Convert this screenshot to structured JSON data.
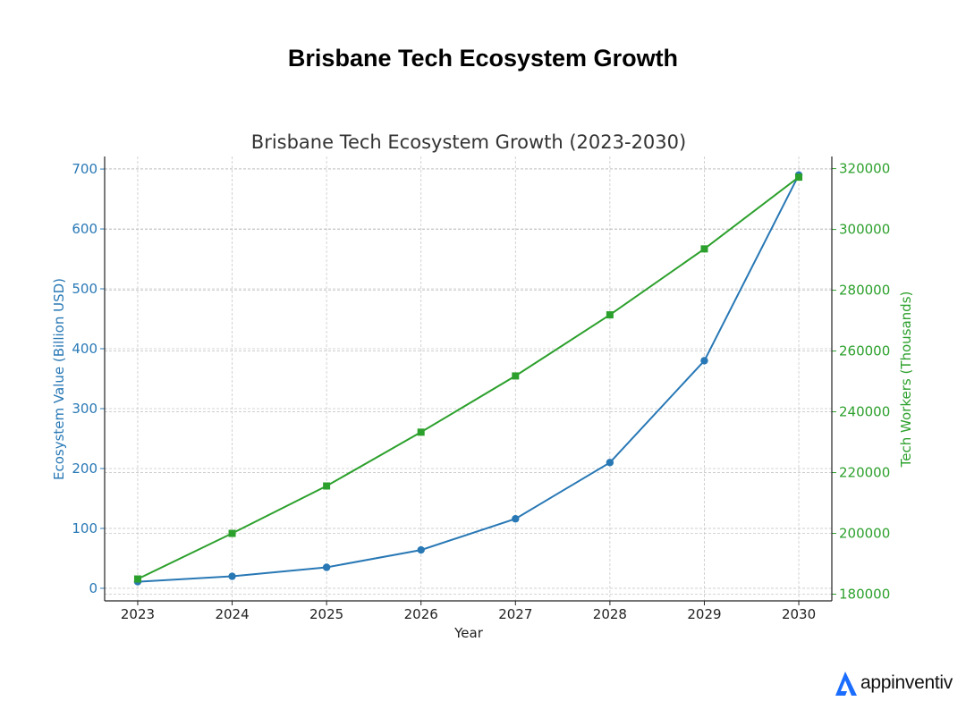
{
  "page": {
    "title": "Brisbane Tech Ecosystem Growth"
  },
  "brand": {
    "logo_text": "appinventiv",
    "logo_color": "#1a6dff"
  },
  "chart_data": {
    "type": "line",
    "title": "Brisbane Tech Ecosystem Growth (2023-2030)",
    "xlabel": "Year",
    "ylabel_left": "Ecosystem Value (Billion USD)",
    "ylabel_right": "Tech Workers (Thousands)",
    "x": [
      2023,
      2024,
      2025,
      2026,
      2027,
      2028,
      2029,
      2030
    ],
    "ylim_left": [
      -21,
      721
    ],
    "ylim_right": [
      177800,
      324000
    ],
    "yticks_left": [
      0,
      100,
      200,
      300,
      400,
      500,
      600,
      700
    ],
    "yticks_right": [
      180000,
      200000,
      220000,
      240000,
      260000,
      280000,
      300000,
      320000
    ],
    "grid": true,
    "series": [
      {
        "name": "Ecosystem Value (Billion USD)",
        "axis": "left",
        "marker": "circle",
        "color": "#2878b5",
        "values": [
          11,
          20,
          35,
          64,
          116,
          210,
          380,
          690
        ]
      },
      {
        "name": "Tech Workers (Thousands)",
        "axis": "right",
        "marker": "square",
        "color": "#2ca02c",
        "values": [
          185000,
          200000,
          215600,
          233300,
          251800,
          271900,
          293600,
          317200
        ]
      }
    ]
  }
}
